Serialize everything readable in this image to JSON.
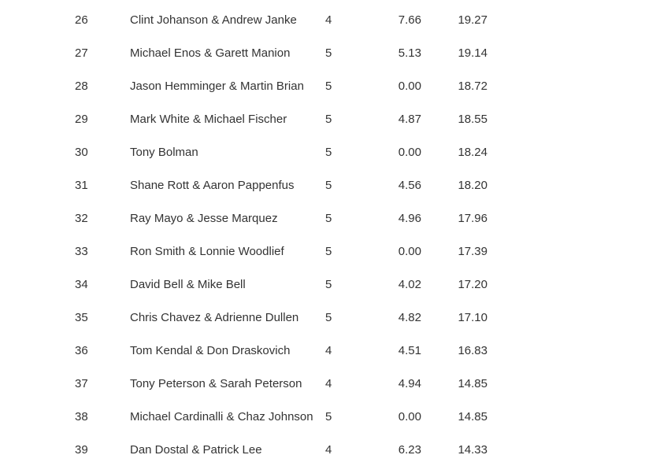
{
  "table": {
    "rows": [
      {
        "rank": "26",
        "team": "Clint Johanson & Andrew Janke",
        "games": "4",
        "points": "7.66",
        "total": "19.27"
      },
      {
        "rank": "27",
        "team": "Michael Enos & Garett Manion",
        "games": "5",
        "points": "5.13",
        "total": "19.14"
      },
      {
        "rank": "28",
        "team": "Jason Hemminger & Martin Brian",
        "games": "5",
        "points": "0.00",
        "total": "18.72"
      },
      {
        "rank": "29",
        "team": "Mark White & Michael Fischer",
        "games": "5",
        "points": "4.87",
        "total": "18.55"
      },
      {
        "rank": "30",
        "team": "Tony Bolman",
        "games": "5",
        "points": "0.00",
        "total": "18.24"
      },
      {
        "rank": "31",
        "team": "Shane Rott & Aaron Pappenfus",
        "games": "5",
        "points": "4.56",
        "total": "18.20"
      },
      {
        "rank": "32",
        "team": "Ray Mayo & Jesse Marquez",
        "games": "5",
        "points": "4.96",
        "total": "17.96"
      },
      {
        "rank": "33",
        "team": "Ron Smith & Lonnie Woodlief",
        "games": "5",
        "points": "0.00",
        "total": "17.39"
      },
      {
        "rank": "34",
        "team": "David Bell & Mike Bell",
        "games": "5",
        "points": "4.02",
        "total": "17.20"
      },
      {
        "rank": "35",
        "team": "Chris Chavez & Adrienne Dullen",
        "games": "5",
        "points": "4.82",
        "total": "17.10"
      },
      {
        "rank": "36",
        "team": "Tom Kendal & Don Draskovich",
        "games": "4",
        "points": "4.51",
        "total": "16.83"
      },
      {
        "rank": "37",
        "team": "Tony Peterson & Sarah Peterson",
        "games": "4",
        "points": "4.94",
        "total": "14.85"
      },
      {
        "rank": "38",
        "team": "Michael Cardinalli & Chaz Johnson",
        "games": "5",
        "points": "0.00",
        "total": "14.85"
      },
      {
        "rank": "39",
        "team": "Dan Dostal & Patrick Lee",
        "games": "4",
        "points": "6.23",
        "total": "14.33"
      }
    ],
    "text_color": "#333333",
    "background_color": "#ffffff"
  }
}
